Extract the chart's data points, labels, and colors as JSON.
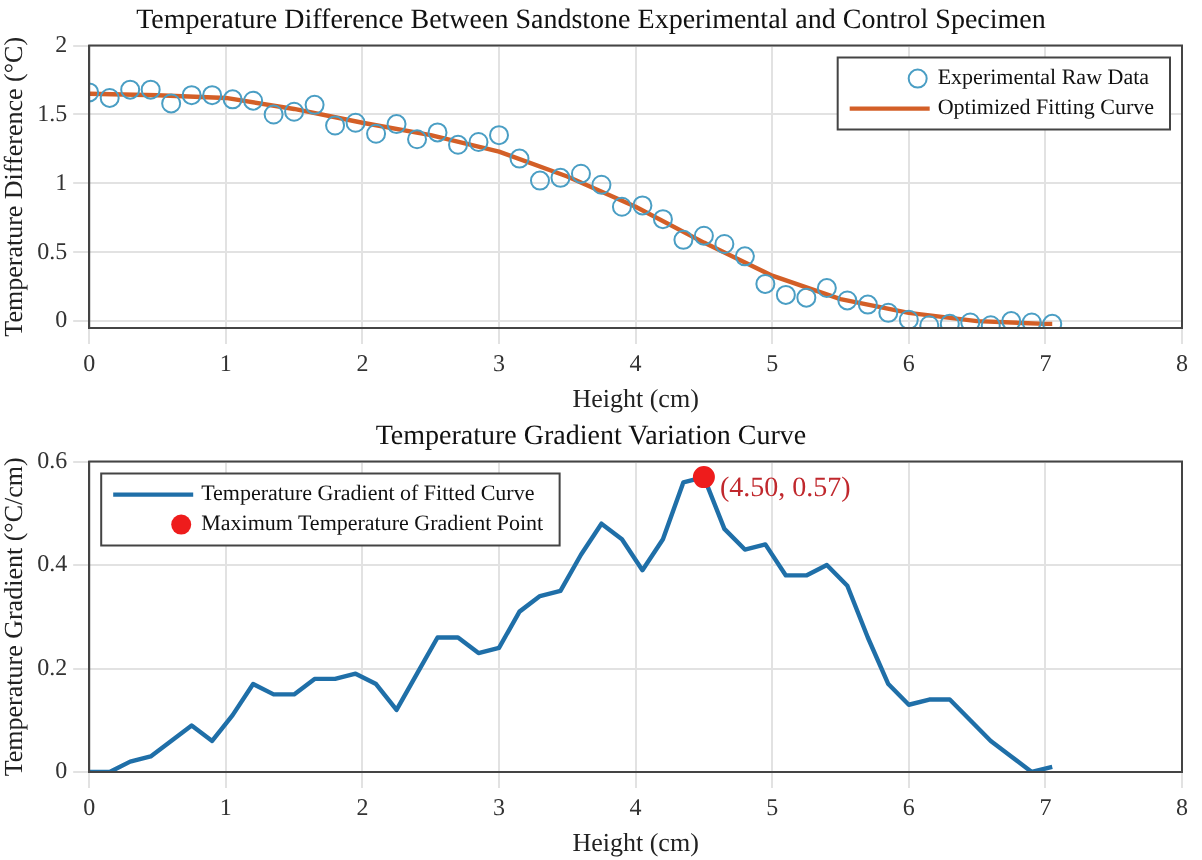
{
  "chart_data": [
    {
      "type": "scatter",
      "title": "Temperature Difference Between Sandstone Experimental and Control Specimen",
      "xlabel": "Height (cm)",
      "ylabel": "Temperature Difference (°C)",
      "xlim": [
        0,
        8
      ],
      "xticks": [
        0,
        1,
        2,
        3,
        4,
        5,
        6,
        7,
        8
      ],
      "ylim": [
        -0.05,
        2
      ],
      "yticks": [
        0,
        0.5,
        1,
        1.5,
        2
      ],
      "grid": true,
      "legend": "top right",
      "series": [
        {
          "name": "Experimental Raw Data",
          "marker": "circle",
          "color": "#4a9ec4",
          "x": [
            0,
            0.15,
            0.3,
            0.45,
            0.6,
            0.75,
            0.9,
            1.05,
            1.2,
            1.35,
            1.5,
            1.65,
            1.8,
            1.95,
            2.1,
            2.25,
            2.4,
            2.55,
            2.7,
            2.85,
            3.0,
            3.15,
            3.3,
            3.45,
            3.6,
            3.75,
            3.9,
            4.05,
            4.2,
            4.35,
            4.5,
            4.65,
            4.8,
            4.95,
            5.1,
            5.25,
            5.4,
            5.55,
            5.7,
            5.85,
            6.0,
            6.15,
            6.3,
            6.45,
            6.6,
            6.75,
            6.9,
            7.05
          ],
          "values": [
            1.66,
            1.62,
            1.68,
            1.68,
            1.58,
            1.64,
            1.64,
            1.61,
            1.6,
            1.5,
            1.52,
            1.57,
            1.42,
            1.44,
            1.36,
            1.43,
            1.32,
            1.37,
            1.28,
            1.3,
            1.35,
            1.18,
            1.02,
            1.04,
            1.07,
            0.99,
            0.83,
            0.84,
            0.74,
            0.59,
            0.62,
            0.56,
            0.47,
            0.27,
            0.19,
            0.17,
            0.24,
            0.15,
            0.12,
            0.06,
            0.01,
            -0.03,
            -0.02,
            -0.01,
            -0.03,
            0.0,
            -0.01,
            -0.02
          ]
        },
        {
          "name": "Optimized Fitting Curve",
          "type": "line",
          "marker": "none",
          "color": "#d35f27",
          "x": [
            0,
            0.5,
            1,
            1.5,
            2,
            2.5,
            3,
            3.5,
            4,
            4.5,
            5,
            5.5,
            6,
            6.5,
            7,
            7.05
          ],
          "values": [
            1.65,
            1.64,
            1.62,
            1.54,
            1.44,
            1.35,
            1.23,
            1.05,
            0.83,
            0.57,
            0.33,
            0.16,
            0.06,
            0.0,
            -0.02,
            -0.02
          ]
        }
      ]
    },
    {
      "type": "line",
      "title": "Temperature Gradient Variation Curve",
      "xlabel": "Height (cm)",
      "ylabel": "Temperature Gradient (°C/cm)",
      "xlim": [
        0,
        8
      ],
      "xticks": [
        0,
        1,
        2,
        3,
        4,
        5,
        6,
        7,
        8
      ],
      "ylim": [
        0,
        0.6
      ],
      "yticks": [
        0,
        0.2,
        0.4,
        0.6
      ],
      "grid": true,
      "legend": "top left",
      "annotations": [
        {
          "text": "(4.50, 0.57)",
          "x": 4.5,
          "y": 0.57
        }
      ],
      "series": [
        {
          "name": "Temperature Gradient of Fitted Curve",
          "marker": "none",
          "color": "#1f6fa8",
          "x": [
            0,
            0.15,
            0.3,
            0.45,
            0.6,
            0.75,
            0.9,
            1.05,
            1.2,
            1.35,
            1.5,
            1.65,
            1.8,
            1.95,
            2.1,
            2.25,
            2.4,
            2.55,
            2.7,
            2.85,
            3.0,
            3.15,
            3.3,
            3.45,
            3.6,
            3.75,
            3.9,
            4.05,
            4.2,
            4.35,
            4.5,
            4.65,
            4.8,
            4.95,
            5.1,
            5.25,
            5.4,
            5.55,
            5.7,
            5.85,
            6.0,
            6.15,
            6.3,
            6.45,
            6.6,
            6.75,
            6.9,
            7.05
          ],
          "values": [
            0,
            0.0,
            0.02,
            0.03,
            0.06,
            0.09,
            0.06,
            0.11,
            0.17,
            0.15,
            0.15,
            0.18,
            0.18,
            0.19,
            0.17,
            0.12,
            0.19,
            0.26,
            0.26,
            0.23,
            0.24,
            0.31,
            0.34,
            0.35,
            0.42,
            0.48,
            0.45,
            0.39,
            0.45,
            0.56,
            0.57,
            0.47,
            0.43,
            0.44,
            0.38,
            0.38,
            0.4,
            0.36,
            0.26,
            0.17,
            0.13,
            0.14,
            0.14,
            0.1,
            0.06,
            0.03,
            0.0,
            0.01
          ]
        },
        {
          "name": "Maximum Temperature Gradient Point",
          "type": "scatter",
          "marker": "circle",
          "color": "#ee1c1c",
          "x": [
            4.5
          ],
          "values": [
            0.57
          ]
        }
      ]
    }
  ]
}
